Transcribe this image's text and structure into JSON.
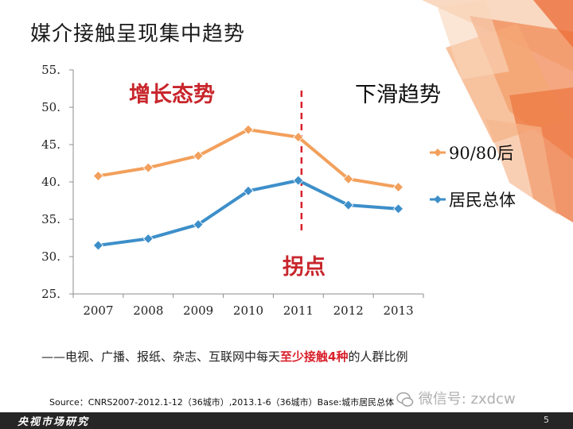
{
  "title": "媒介接触呈现集中趋势",
  "colors": {
    "series_a": "#f2a05c",
    "series_b": "#3d8fc9",
    "divider": "#d9202b",
    "annot_red": "#c8262c",
    "annot_black": "#111111"
  },
  "chart_data": {
    "type": "line",
    "categories": [
      "2007",
      "2008",
      "2009",
      "2010",
      "2011",
      "2012",
      "2013"
    ],
    "ylim": [
      25,
      55
    ],
    "yticks": [
      "25.",
      "30.",
      "35.",
      "40.",
      "45.",
      "50.",
      "55."
    ],
    "series": [
      {
        "name": "90/80后",
        "values": [
          40.8,
          41.9,
          43.5,
          47.0,
          46.0,
          40.4,
          39.3
        ],
        "color": "#f2a05c"
      },
      {
        "name": "居民总体",
        "values": [
          31.5,
          32.4,
          34.3,
          38.8,
          40.2,
          36.9,
          36.4
        ],
        "color": "#3d8fc9"
      }
    ],
    "annotations": {
      "growth": "增长态势",
      "decline": "下滑趋势",
      "turning_point": "拐点"
    },
    "divider_x": "2011",
    "legend_position": "right"
  },
  "note": {
    "prefix": "——电视、广播、报纸、杂志、互联网中每天",
    "highlight": "至少接触4种",
    "suffix": "的人群比例"
  },
  "source": "Source：CNRS2007-2012.1-12（36城市）,2013.1-6（36城市）Base:城市居民总体",
  "watermark": "微信号: zxdcw",
  "footer": {
    "brand": "央视市场研究",
    "page": "5"
  }
}
